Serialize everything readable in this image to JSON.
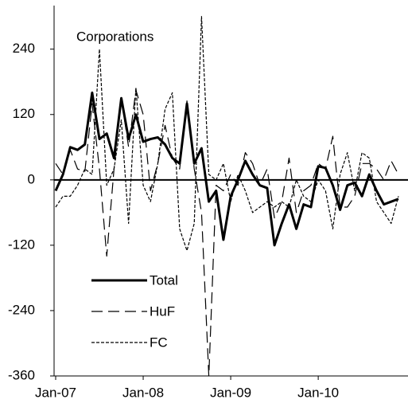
{
  "chart_data": {
    "type": "line",
    "title": "Corporations",
    "categories": [
      "Jan-07",
      null,
      null,
      null,
      null,
      null,
      null,
      null,
      null,
      null,
      null,
      null,
      "Jan-08",
      null,
      null,
      null,
      null,
      null,
      null,
      null,
      null,
      null,
      null,
      null,
      "Jan-09",
      null,
      null,
      null,
      null,
      null,
      null,
      null,
      null,
      null,
      null,
      null,
      "Jan-10",
      null,
      null,
      null,
      null,
      null,
      null,
      null,
      null,
      null,
      null,
      null
    ],
    "series": [
      {
        "name": "Total",
        "color": "#000000",
        "linestyle": "solid",
        "values": [
          -20,
          10,
          60,
          55,
          65,
          160,
          75,
          85,
          40,
          150,
          75,
          120,
          70,
          75,
          78,
          65,
          40,
          30,
          140,
          30,
          58,
          -40,
          -20,
          -110,
          -30,
          0,
          35,
          10,
          -10,
          -15,
          -120,
          -80,
          -45,
          -90,
          -45,
          -50,
          25,
          22,
          -10,
          -55,
          -10,
          -5,
          -30,
          10,
          -20,
          -45,
          -40,
          -35
        ]
      },
      {
        "name": "HuF",
        "color": "#000000",
        "linestyle": "dashed",
        "values": [
          30,
          10,
          55,
          20,
          15,
          140,
          20,
          -140,
          20,
          150,
          60,
          165,
          120,
          -20,
          30,
          100,
          40,
          20,
          145,
          20,
          -60,
          -360,
          -10,
          -20,
          10,
          -10,
          50,
          30,
          -10,
          20,
          -70,
          -40,
          40,
          -60,
          -20,
          -10,
          30,
          20,
          80,
          -50,
          -50,
          -30,
          30,
          30,
          20,
          0,
          35,
          10
        ]
      },
      {
        "name": "FC",
        "color": "#000000",
        "linestyle": "dotted",
        "values": [
          -50,
          -30,
          -30,
          -10,
          20,
          10,
          240,
          -10,
          20,
          110,
          -80,
          170,
          -10,
          -40,
          30,
          130,
          160,
          -90,
          -130,
          -80,
          300,
          10,
          0,
          30,
          -40,
          10,
          -20,
          -60,
          -50,
          -40,
          -50,
          -40,
          -50,
          0,
          -30,
          -40,
          0,
          -20,
          -90,
          10,
          50,
          -20,
          50,
          40,
          -40,
          -60,
          -80,
          -30
        ]
      }
    ],
    "ylim": [
      -360,
      320
    ],
    "yticks": [
      -360,
      -240,
      -120,
      0,
      120,
      240
    ],
    "legend": "lower left"
  }
}
